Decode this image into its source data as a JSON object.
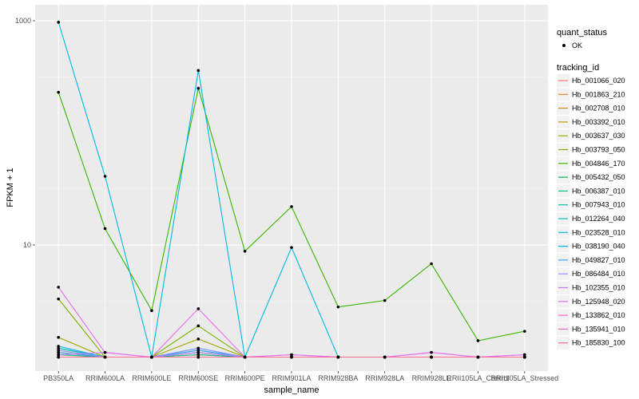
{
  "chart_data": {
    "type": "line",
    "xlabel": "sample_name",
    "ylabel": "FPKM + 1",
    "y_scale": "log10",
    "ylim": [
      1,
      1000
    ],
    "y_ticks": [
      10,
      1000
    ],
    "y_tick_labels": [
      "10",
      "1000"
    ],
    "grid": true,
    "legend_position": "right",
    "categories": [
      "PB350LA",
      "RRIM600LA",
      "RRIM600LE",
      "RRIM600SE",
      "RRIM600PE",
      "RRIM901LA",
      "RRIM928BA",
      "RRIM928LA",
      "RRIM928LE",
      "RRII105LA_Control",
      "RRII105LA_Stressed"
    ],
    "quant_status": {
      "title": "quant_status",
      "entries": [
        "OK"
      ]
    },
    "legend_title": "tracking_id",
    "series": [
      {
        "name": "Hb_001066_020",
        "color": "#F8766D",
        "values": [
          1.05,
          1.0,
          1.0,
          1.05,
          1.0,
          1.0,
          1.0,
          1.0,
          1.0,
          1.0,
          1.0
        ]
      },
      {
        "name": "Hb_001863_210",
        "color": "#EA8331",
        "values": [
          1.1,
          1.0,
          1.0,
          1.1,
          1.0,
          1.0,
          1.0,
          1.0,
          1.0,
          1.0,
          1.0
        ]
      },
      {
        "name": "Hb_002708_010",
        "color": "#D89000",
        "values": [
          1.0,
          1.0,
          1.0,
          1.0,
          1.0,
          1.0,
          1.0,
          1.0,
          1.0,
          1.0,
          1.0
        ]
      },
      {
        "name": "Hb_003392_010",
        "color": "#C09B00",
        "values": [
          1.15,
          1.0,
          1.0,
          1.1,
          1.0,
          1.0,
          1.0,
          1.0,
          1.0,
          1.0,
          1.0
        ]
      },
      {
        "name": "Hb_003637_030",
        "color": "#A3A500",
        "values": [
          1.5,
          1.0,
          1.0,
          1.45,
          1.0,
          1.0,
          1.0,
          1.0,
          1.0,
          1.0,
          1.0
        ]
      },
      {
        "name": "Hb_003793_050",
        "color": "#7CAE00",
        "values": [
          3.3,
          1.0,
          1.0,
          1.9,
          1.0,
          1.0,
          1.0,
          1.0,
          1.0,
          1.0,
          1.0
        ]
      },
      {
        "name": "Hb_004846_170",
        "color": "#39B600",
        "values": [
          230,
          14,
          2.6,
          250,
          8.8,
          22,
          2.8,
          3.2,
          6.8,
          1.4,
          1.7
        ]
      },
      {
        "name": "Hb_005432_050",
        "color": "#00BB4E",
        "values": [
          1.2,
          1.0,
          1.0,
          1.15,
          1.0,
          1.0,
          1.0,
          1.0,
          1.0,
          1.0,
          1.0
        ]
      },
      {
        "name": "Hb_006387_010",
        "color": "#00BF7D",
        "values": [
          1.05,
          1.0,
          1.0,
          1.05,
          1.0,
          1.0,
          1.0,
          1.0,
          1.0,
          1.0,
          1.0
        ]
      },
      {
        "name": "Hb_007943_010",
        "color": "#00C1A3",
        "values": [
          1.0,
          1.0,
          1.0,
          1.0,
          1.0,
          1.0,
          1.0,
          1.0,
          1.0,
          1.0,
          1.0
        ]
      },
      {
        "name": "Hb_012264_040",
        "color": "#00BFC4",
        "values": [
          1.2,
          1.0,
          1.0,
          1.1,
          1.0,
          1.0,
          1.0,
          1.0,
          1.0,
          1.0,
          1.0
        ]
      },
      {
        "name": "Hb_023528_010",
        "color": "#00BAE0",
        "values": [
          970,
          41,
          1.0,
          360,
          1.0,
          9.5,
          1.0,
          1.0,
          1.0,
          1.0,
          1.0
        ]
      },
      {
        "name": "Hb_038190_040",
        "color": "#00B0F6",
        "values": [
          1.25,
          1.0,
          1.0,
          1.2,
          1.0,
          1.0,
          1.0,
          1.0,
          1.0,
          1.0,
          1.0
        ]
      },
      {
        "name": "Hb_049827_010",
        "color": "#35A2FF",
        "values": [
          1.1,
          1.0,
          1.0,
          1.15,
          1.0,
          1.0,
          1.0,
          1.0,
          1.0,
          1.0,
          1.0
        ]
      },
      {
        "name": "Hb_086484_010",
        "color": "#9590FF",
        "values": [
          1.15,
          1.0,
          1.0,
          1.2,
          1.0,
          1.0,
          1.0,
          1.0,
          1.0,
          1.0,
          1.0
        ]
      },
      {
        "name": "Hb_102355_010",
        "color": "#C77CFF",
        "values": [
          1.05,
          1.1,
          1.0,
          1.1,
          1.0,
          1.05,
          1.0,
          1.0,
          1.1,
          1.0,
          1.05
        ]
      },
      {
        "name": "Hb_125948_020",
        "color": "#E76BF3",
        "values": [
          4.2,
          1.1,
          1.0,
          2.7,
          1.0,
          1.05,
          1.0,
          1.0,
          1.1,
          1.0,
          1.05
        ]
      },
      {
        "name": "Hb_133862_010",
        "color": "#FA62DB",
        "values": [
          1.0,
          1.0,
          1.0,
          1.0,
          1.0,
          1.0,
          1.0,
          1.0,
          1.0,
          1.0,
          1.0
        ]
      },
      {
        "name": "Hb_135941_010",
        "color": "#FF62BC",
        "values": [
          1.0,
          1.0,
          1.0,
          1.0,
          1.0,
          1.0,
          1.0,
          1.0,
          1.0,
          1.0,
          1.0
        ]
      },
      {
        "name": "Hb_185830_100",
        "color": "#FF6C91",
        "values": [
          1.0,
          1.0,
          1.0,
          1.0,
          1.0,
          1.0,
          1.0,
          1.0,
          1.0,
          1.0,
          1.0
        ]
      }
    ]
  }
}
